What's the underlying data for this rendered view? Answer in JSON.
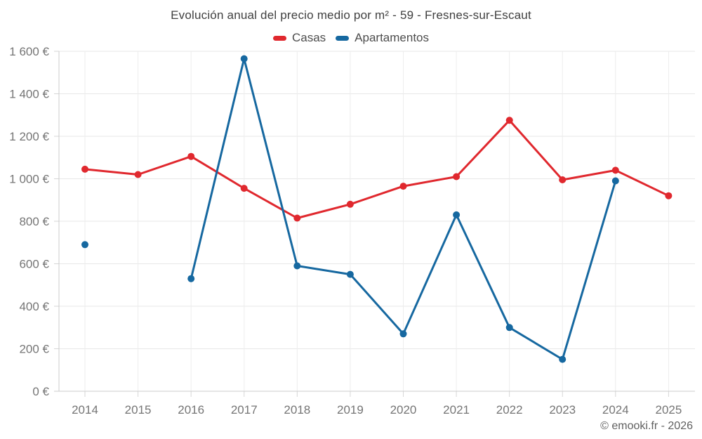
{
  "chart_data": {
    "type": "line",
    "title": "Evolución anual del precio medio por m² - 59 - Fresnes-sur-Escaut",
    "categories": [
      "2014",
      "2015",
      "2016",
      "2017",
      "2018",
      "2019",
      "2020",
      "2021",
      "2022",
      "2023",
      "2024",
      "2025"
    ],
    "series": [
      {
        "name": "Casas",
        "color": "#e0282e",
        "values": [
          1045,
          1020,
          1105,
          955,
          815,
          880,
          965,
          1010,
          1275,
          995,
          1040,
          920
        ]
      },
      {
        "name": "Apartamentos",
        "color": "#1668a0",
        "values": [
          690,
          null,
          530,
          1565,
          590,
          550,
          270,
          830,
          300,
          150,
          990,
          null
        ]
      }
    ],
    "ylim": [
      0,
      1600
    ],
    "y_tick_step": 200,
    "y_tick_labels": [
      "0 €",
      "200 €",
      "400 €",
      "600 €",
      "800 €",
      "1 000 €",
      "1 200 €",
      "1 400 €",
      "1 600 €"
    ],
    "grid": true,
    "legend_position": "top",
    "currency_suffix": "€"
  },
  "footer": {
    "copyright": "© emooki.fr - 2026"
  },
  "colors": {
    "background": "#ffffff",
    "grid_horizontal": "#e7e7e7",
    "grid_vertical": "#ededed",
    "axis_line": "#cccccc",
    "tick_mark": "#d6d6d6",
    "tick_text": "#757575",
    "title_text": "#3f3f3f",
    "legend_text": "#4d4d4d",
    "footer_text": "#606060"
  }
}
